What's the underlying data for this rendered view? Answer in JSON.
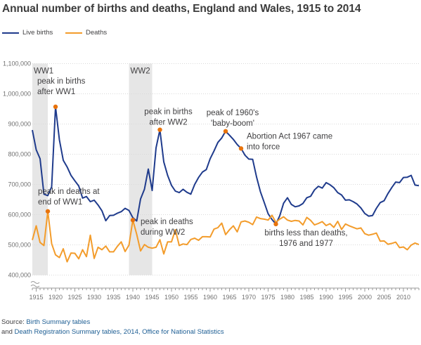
{
  "title": "Annual number of births and deaths, England and Wales, 1915 to 2014",
  "legend": {
    "placement": "top-left",
    "items": [
      {
        "label": "Live births",
        "color": "#1f3b8c"
      },
      {
        "label": "Deaths",
        "color": "#f39c2b"
      }
    ]
  },
  "source": {
    "line1_prefix": "Source: ",
    "line1_link": "Birth Summary tables",
    "line2_prefix": "and ",
    "line2_link": "Death Registration Summary tables, 2014, Office for National Statistics"
  },
  "chart_data": {
    "type": "line",
    "title": "Annual number of births and deaths, England and Wales, 1915 to 2014",
    "xlabel": "",
    "ylabel": "",
    "xlim": [
      1914,
      2014
    ],
    "ylim": [
      400000,
      1100000
    ],
    "y_axis_break": true,
    "grid": {
      "horizontal": true,
      "vertical": false
    },
    "legend_placement": "top-left",
    "x_ticks": [
      1915,
      1920,
      1925,
      1930,
      1935,
      1940,
      1945,
      1950,
      1955,
      1960,
      1965,
      1970,
      1975,
      1980,
      1985,
      1990,
      1995,
      2000,
      2005,
      2010
    ],
    "y_ticks": [
      {
        "value": 400000,
        "label": "400,000"
      },
      {
        "value": 500000,
        "label": "500,000"
      },
      {
        "value": 600000,
        "label": "600,000"
      },
      {
        "value": 700000,
        "label": "700,000"
      },
      {
        "value": 800000,
        "label": "800,000"
      },
      {
        "value": 900000,
        "label": "900,000"
      },
      {
        "value": 1000000,
        "label": "1,000,000"
      },
      {
        "value": 1100000,
        "label": "1,100,000"
      }
    ],
    "shaded_periods": [
      {
        "label": "WW1",
        "start": 1914,
        "end": 1918,
        "color": "#e6e6e6"
      },
      {
        "label": "WW2",
        "start": 1939,
        "end": 1945,
        "color": "#e6e6e6"
      }
    ],
    "x": [
      1914,
      1915,
      1916,
      1917,
      1918,
      1919,
      1920,
      1921,
      1922,
      1923,
      1924,
      1925,
      1926,
      1927,
      1928,
      1929,
      1930,
      1931,
      1932,
      1933,
      1934,
      1935,
      1936,
      1937,
      1938,
      1939,
      1940,
      1941,
      1942,
      1943,
      1944,
      1945,
      1946,
      1947,
      1948,
      1949,
      1950,
      1951,
      1952,
      1953,
      1954,
      1955,
      1956,
      1957,
      1958,
      1959,
      1960,
      1961,
      1962,
      1963,
      1964,
      1965,
      1966,
      1967,
      1968,
      1969,
      1970,
      1971,
      1972,
      1973,
      1974,
      1975,
      1976,
      1977,
      1978,
      1979,
      1980,
      1981,
      1982,
      1983,
      1984,
      1985,
      1986,
      1987,
      1988,
      1989,
      1990,
      1991,
      1992,
      1993,
      1994,
      1995,
      1996,
      1997,
      1998,
      1999,
      2000,
      2001,
      2002,
      2003,
      2004,
      2005,
      2006,
      2007,
      2008,
      2009,
      2010,
      2011,
      2012,
      2013,
      2014
    ],
    "series": [
      {
        "name": "Live births",
        "color": "#1f3b8c",
        "values": [
          880000,
          815000,
          785000,
          668000,
          663000,
          692000,
          957000,
          848000,
          780000,
          758000,
          730000,
          712000,
          695000,
          655000,
          660000,
          643000,
          648000,
          632000,
          613000,
          580000,
          597000,
          598000,
          605000,
          610000,
          621000,
          614000,
          590000,
          579000,
          652000,
          684000,
          751000,
          680000,
          821000,
          881000,
          775000,
          730000,
          697000,
          678000,
          673000,
          684000,
          674000,
          668000,
          700000,
          723000,
          741000,
          749000,
          785000,
          811000,
          839000,
          854000,
          876000,
          863000,
          849000,
          832000,
          819000,
          797000,
          784000,
          783000,
          725000,
          676000,
          640000,
          603000,
          584000,
          569000,
          596000,
          638000,
          656000,
          634000,
          626000,
          629000,
          637000,
          656000,
          661000,
          682000,
          694000,
          688000,
          706000,
          699000,
          689000,
          673000,
          665000,
          648000,
          649000,
          643000,
          635000,
          622000,
          604000,
          595000,
          597000,
          621000,
          640000,
          646000,
          670000,
          690000,
          708000,
          706000,
          723000,
          724000,
          730000,
          698000,
          696000
        ]
      },
      {
        "name": "Deaths",
        "color": "#f39c2b",
        "values": [
          516000,
          563000,
          508000,
          498000,
          611000,
          504000,
          467000,
          458000,
          487000,
          444000,
          473000,
          472000,
          454000,
          484000,
          461000,
          532000,
          455000,
          492000,
          484000,
          496000,
          477000,
          477000,
          495000,
          510000,
          478000,
          499000,
          582000,
          535000,
          480000,
          501000,
          492000,
          489000,
          492000,
          517000,
          470000,
          510000,
          510000,
          550000,
          498000,
          503000,
          501000,
          518000,
          522000,
          515000,
          527000,
          527000,
          526000,
          552000,
          557000,
          572000,
          534000,
          550000,
          563000,
          543000,
          576000,
          579000,
          575000,
          567000,
          592000,
          587000,
          585000,
          582000,
          598000,
          575000,
          585000,
          593000,
          582000,
          578000,
          581000,
          579000,
          566000,
          591000,
          581000,
          566000,
          571000,
          577000,
          564000,
          570000,
          558000,
          578000,
          551000,
          569000,
          563000,
          558000,
          553000,
          556000,
          537000,
          532000,
          535000,
          539000,
          512000,
          513000,
          502000,
          505000,
          509000,
          491000,
          493000,
          484000,
          499000,
          506000,
          501000
        ]
      }
    ],
    "annotations": [
      {
        "lines": [
          "peak in births",
          "after WW1"
        ],
        "x": 1920,
        "series": "Live births",
        "y": 957000
      },
      {
        "lines": [
          "peak in births",
          "after WW2"
        ],
        "x": 1947,
        "series": "Live births",
        "y": 881000
      },
      {
        "lines": [
          "peak of 1960's",
          "'baby-boom'"
        ],
        "x": 1964,
        "series": "Live births",
        "y": 876000
      },
      {
        "lines": [
          "Abortion Act 1967 came",
          "into force"
        ],
        "x": 1968,
        "series": "Live births",
        "y": 819000
      },
      {
        "lines": [
          "peak in deaths at",
          "end of WW1"
        ],
        "x": 1918,
        "series": "Deaths",
        "y": 611000
      },
      {
        "lines": [
          "peak in deaths",
          "during WW2"
        ],
        "x": 1940,
        "series": "Deaths",
        "y": 582000
      },
      {
        "lines": [
          "births less than deaths,",
          "1976 and 1977"
        ],
        "x": 1977,
        "series": "Live births",
        "y": 569000
      }
    ]
  }
}
